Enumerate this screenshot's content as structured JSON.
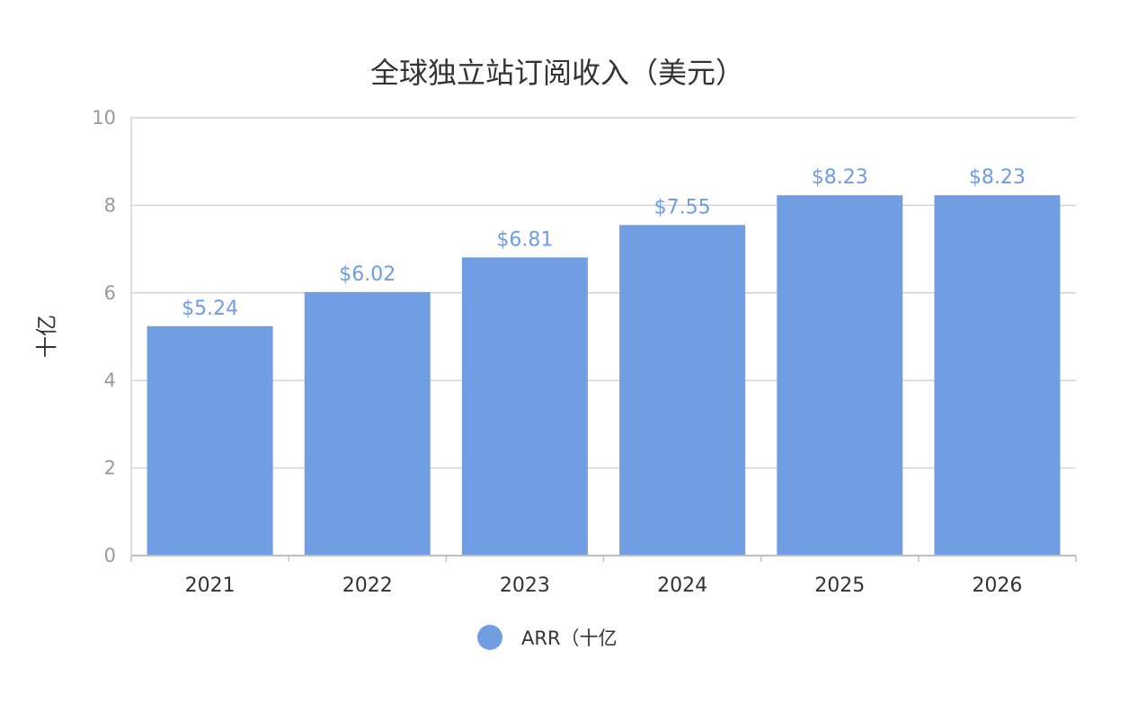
{
  "chart_data": {
    "type": "bar",
    "title": "全球独立站订阅收入（美元）",
    "ylabel": "十亿",
    "xlabel": "",
    "categories": [
      "2021",
      "2022",
      "2023",
      "2024",
      "2025",
      "2026"
    ],
    "series": [
      {
        "name": "ARR（十亿",
        "values": [
          5.24,
          6.02,
          6.81,
          7.55,
          8.23,
          8.23
        ],
        "labels": [
          "$5.24",
          "$6.02",
          "$6.81",
          "$7.55",
          "$8.23",
          "$8.23"
        ],
        "color": "#719de2"
      }
    ],
    "ylim": [
      0,
      10
    ],
    "yticks": [
      0,
      2,
      4,
      6,
      8,
      10
    ],
    "grid": true,
    "legend": "bottom"
  }
}
